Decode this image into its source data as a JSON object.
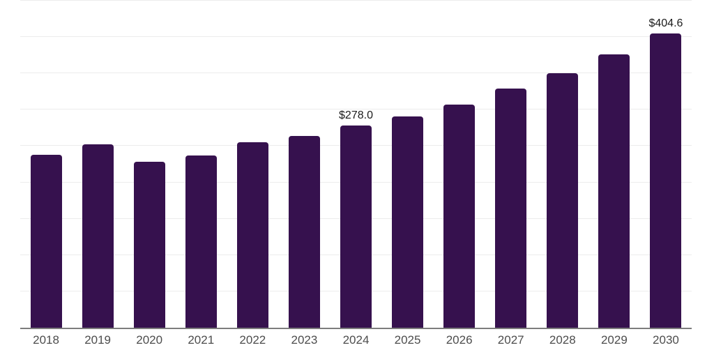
{
  "chart_data": {
    "type": "bar",
    "categories": [
      "2018",
      "2019",
      "2020",
      "2021",
      "2022",
      "2023",
      "2024",
      "2025",
      "2026",
      "2027",
      "2028",
      "2029",
      "2030"
    ],
    "values": [
      238,
      252,
      228,
      237,
      255,
      264,
      278.0,
      291,
      307,
      329,
      350,
      376,
      404.6
    ],
    "value_labels": [
      "",
      "",
      "",
      "",
      "",
      "",
      "$278.0",
      "",
      "",
      "",
      "",
      "",
      "$404.6"
    ],
    "xlabel": "",
    "ylabel": "",
    "ylim": [
      0,
      450
    ],
    "ytick_step": 50,
    "grid": true,
    "legend": false,
    "y_axis_labels_visible": false
  },
  "style": {
    "background_color": "#ffffff",
    "bar_color": "#36114E",
    "gridline_color": "#ececec",
    "axis_line_color": "#7d7d7d",
    "tick_label_color": "#4d4d4d",
    "data_label_color": "#1b1b1b"
  }
}
